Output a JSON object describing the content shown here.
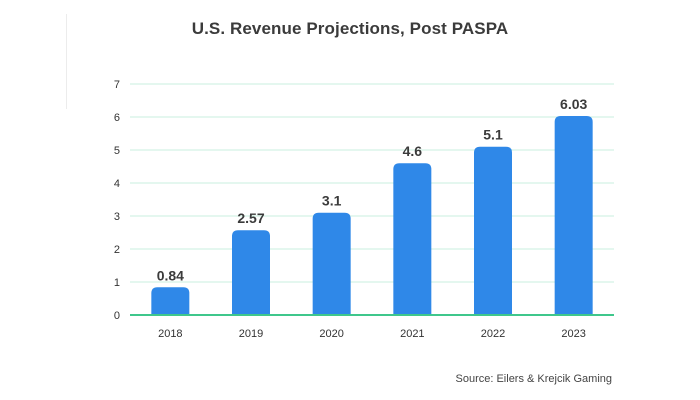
{
  "chart_data": {
    "type": "bar",
    "title": "U.S. Revenue Projections, Post PASPA",
    "categories": [
      "2018",
      "2019",
      "2020",
      "2021",
      "2022",
      "2023"
    ],
    "values": [
      0.84,
      2.57,
      3.1,
      4.6,
      5.1,
      6.03
    ],
    "value_labels": [
      "0.84",
      "2.57",
      "3.1",
      "4.6",
      "5.1",
      "6.03"
    ],
    "xlabel": "",
    "ylabel": "",
    "ylim": [
      0,
      7
    ],
    "yticks": [
      "0",
      "1",
      "2",
      "3",
      "4",
      "5",
      "6",
      "7"
    ],
    "grid": true,
    "colors": {
      "bar": "#2f88e8",
      "grid": "#c8efdf",
      "axis": "#3fc78c",
      "text": "#3b3b3b"
    }
  },
  "source": "Source: Eilers & Krejcik Gaming"
}
